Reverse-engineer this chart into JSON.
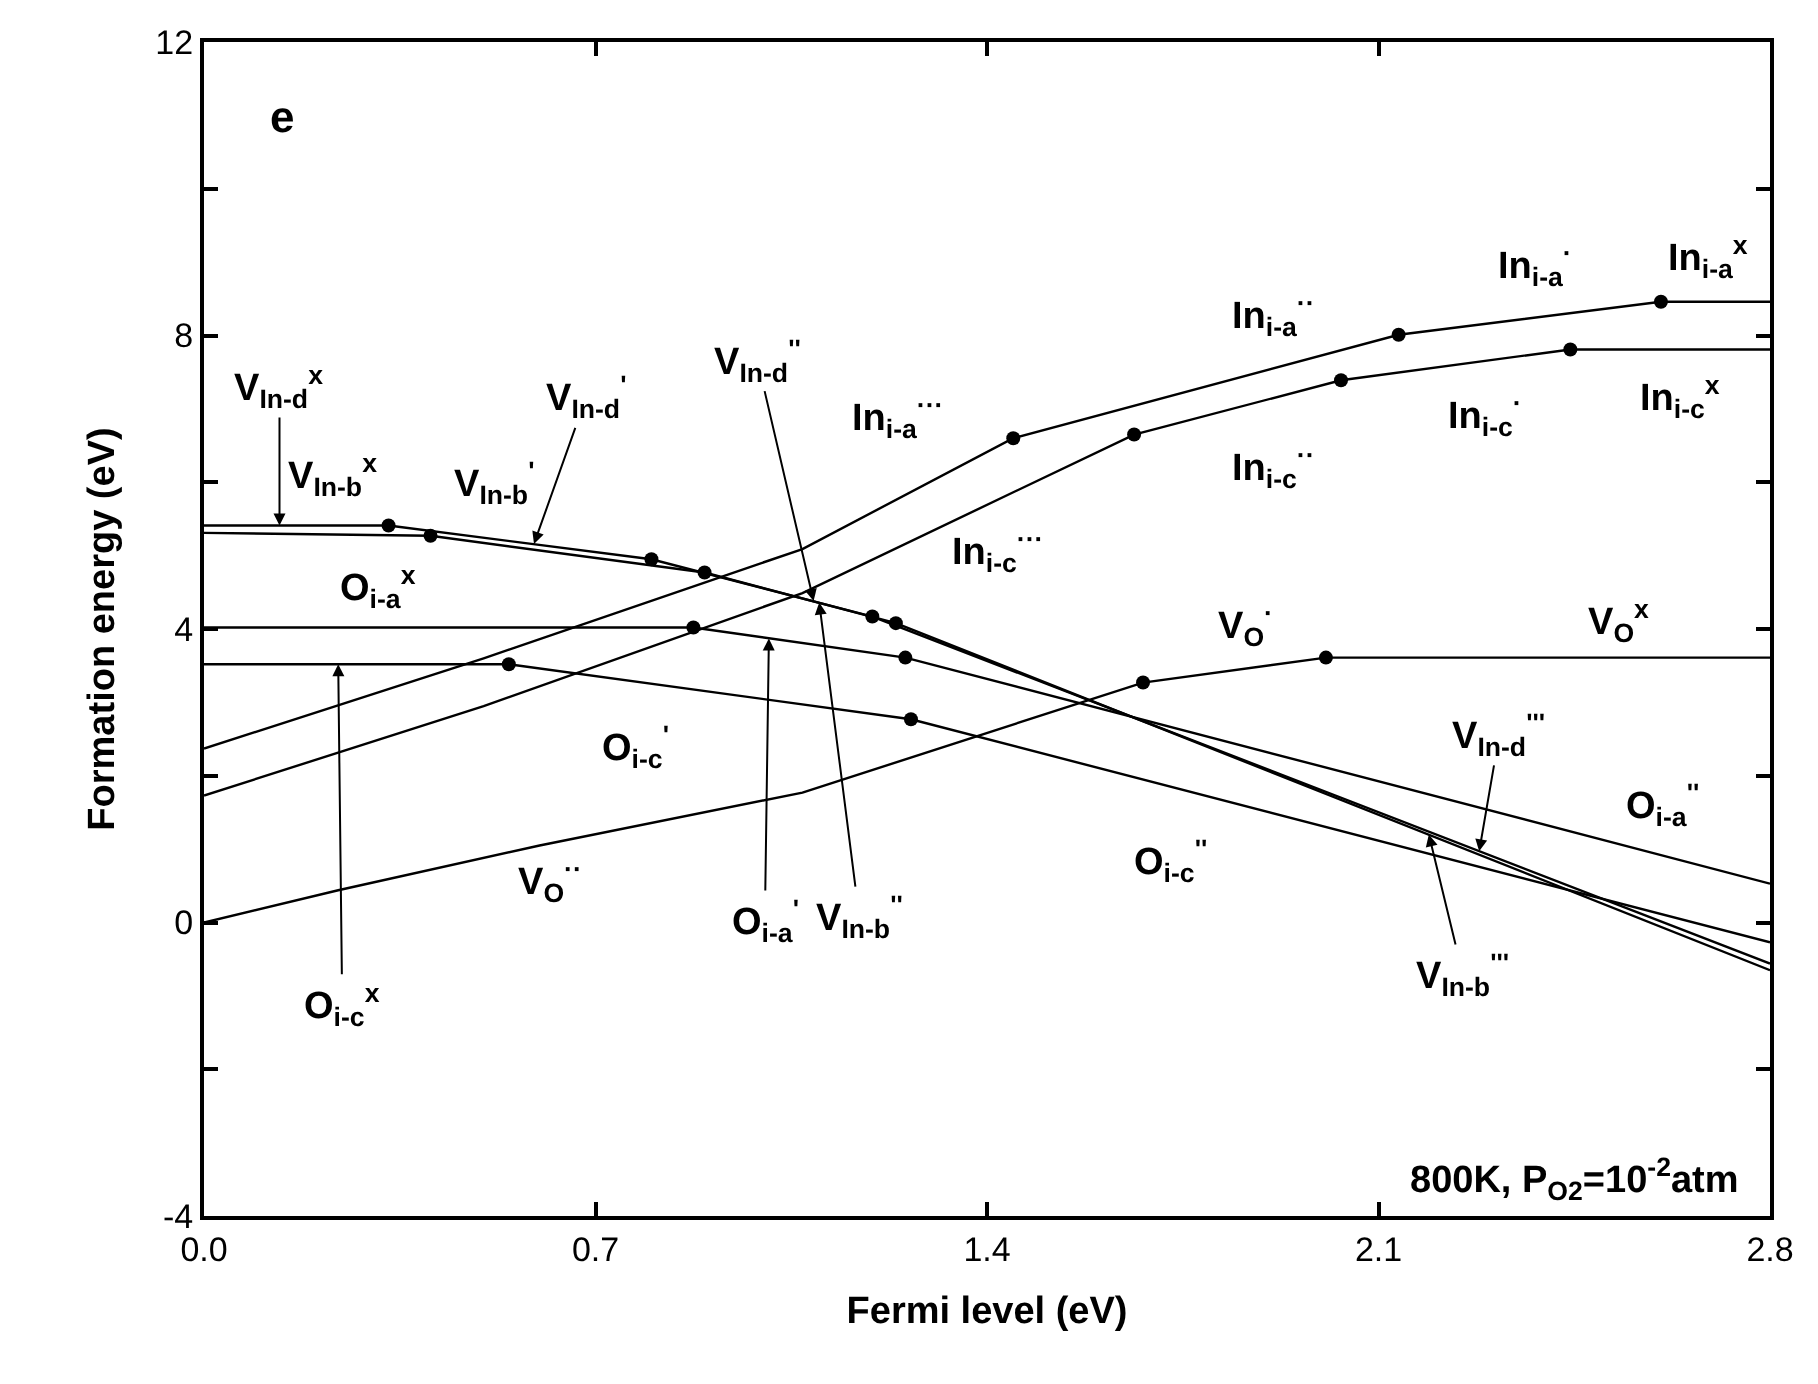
{
  "chart_data": {
    "type": "line",
    "xlabel": "Fermi level (eV)",
    "ylabel": "Formation energy (eV)",
    "xlim": [
      0,
      2.8
    ],
    "xticks": [
      {
        "value": 0,
        "label": "0.0"
      },
      0.7,
      1.4,
      2.1,
      2.8
    ],
    "ylim": [
      -4,
      12
    ],
    "yticks": [
      -4,
      {
        "value": -2,
        "label": null
      },
      0,
      {
        "value": 2,
        "label": null
      },
      4,
      {
        "value": 6,
        "label": null
      },
      8,
      {
        "value": 10,
        "label": null
      },
      12
    ],
    "line_style": "solid",
    "series": [
      {
        "color": "#000000",
        "x": [
          0,
          0.24,
          0.6,
          1.07,
          1.679,
          2.006,
          2.8
        ],
        "values": [
          0,
          0.44,
          1.05,
          1.77,
          3.27,
          3.61,
          3.61
        ]
      },
      {
        "color": "#000000",
        "x": [
          0,
          0.5,
          1.07,
          1.447,
          2.136,
          2.605,
          2.8
        ],
        "values": [
          2.37,
          3.6,
          5.09,
          6.6,
          8.01,
          8.46,
          8.46
        ]
      },
      {
        "color": "#000000",
        "x": [
          0,
          0.5,
          1.07,
          1.663,
          2.033,
          2.443,
          2.8
        ],
        "values": [
          1.73,
          2.95,
          4.49,
          6.65,
          7.39,
          7.81,
          7.81
        ]
      },
      {
        "color": "#000000",
        "x": [
          0,
          0.33,
          0.8,
          1.195,
          2.8
        ],
        "values": [
          5.41,
          5.41,
          4.95,
          4.17,
          -0.56
        ]
      },
      {
        "color": "#000000",
        "x": [
          0,
          0.405,
          0.895,
          1.237,
          2.8
        ],
        "values": [
          5.31,
          5.27,
          4.77,
          4.08,
          -0.65
        ]
      },
      {
        "color": "#000000",
        "x": [
          0,
          0.875,
          1.254,
          2.8
        ],
        "values": [
          4.02,
          4.02,
          3.61,
          0.53
        ]
      },
      {
        "color": "#000000",
        "x": [
          0,
          0.545,
          1.264,
          2.8
        ],
        "values": [
          3.52,
          3.52,
          2.77,
          -0.27
        ]
      },
      {
        "type": "scatter",
        "marker": "circle",
        "color": "#000000",
        "x": [
          1.679,
          2.006,
          1.447,
          2.136,
          2.605,
          1.663,
          2.033,
          2.443,
          0.33,
          0.8,
          1.195,
          0.405,
          0.895,
          1.237,
          0.875,
          1.254,
          0.545,
          1.264
        ],
        "values": [
          3.27,
          3.61,
          6.6,
          8.01,
          8.46,
          6.65,
          7.39,
          7.81,
          5.41,
          4.95,
          4.17,
          5.27,
          4.77,
          4.08,
          4.02,
          3.61,
          3.52,
          2.77
        ]
      }
    ],
    "annotations": [
      "e",
      {
        "text": "V$_{In-d}$$^{x}$",
        "x": 0.135,
        "y": 5.41
      },
      "V$_{In-b}$$^{x}$",
      "O$_{i-a}$$^{x}$",
      "V$_{In-b}$$^{'}$",
      {
        "text": "V$_{In-d}$$^{'}$",
        "x": 0.59,
        "y": 5.16
      },
      {
        "text": "V$_{In-d}$$^{''}$",
        "x": 1.09,
        "y": 4.38
      },
      "In$_{i-a}$$^{···}$",
      "In$_{i-c}$$^{···}$",
      "In$_{i-a}$$^{··}$",
      "In$_{i-a}$$^{·}$",
      "In$_{i-a}$$^{x}$",
      "In$_{i-c}$$^{··}$",
      "In$_{i-c}$$^{·}$",
      "In$_{i-c}$$^{x}$",
      "V$_{O}$$^{·}$",
      "V$_{O}$$^{x}$",
      "O$_{i-c}$$^{'}$",
      "V$_{O}$$^{··}$",
      {
        "text": "O$_{i-c}$$^{x}$",
        "x": 0.24,
        "y": 3.52
      },
      {
        "text": "O$_{i-a}$$^{'}$",
        "x": 1.01,
        "y": 3.87
      },
      {
        "text": "V$_{In-b}$$^{''}$",
        "x": 1.1,
        "y": 4.36
      },
      "O$_{i-c}$$^{''}$",
      {
        "text": "V$_{In-d}$$^{'''}$",
        "x": 2.28,
        "y": 0.97
      },
      "O$_{i-a}$$^{''}$",
      {
        "text": "V$_{In-b}$$^{'''}$",
        "x": 2.19,
        "y": 1.2
      },
      "800K, P$_{O2}$=10$^{-2}$atm"
    ]
  }
}
